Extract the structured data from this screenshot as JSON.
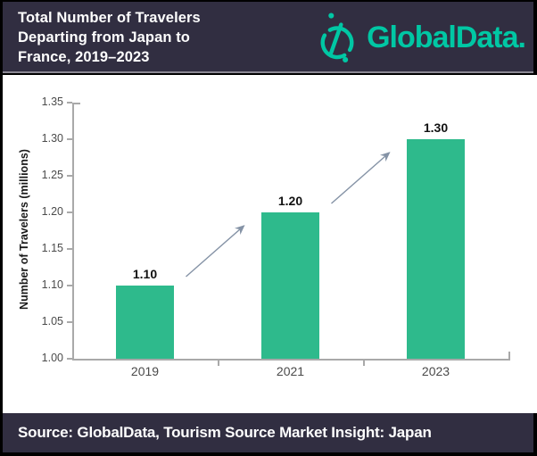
{
  "header": {
    "title_lines": [
      "Total Number of Travelers",
      "Departing from Japan to",
      "France, 2019–2023"
    ],
    "brand": "GlobalData.",
    "colors": {
      "background": "#312E41",
      "accent": "#00C7A4"
    }
  },
  "footer": {
    "source_text": "Source: GlobalData, Tourism Source Market Insight: Japan"
  },
  "chart_data": {
    "type": "bar",
    "title": "Total Number of Travelers Departing from Japan to France, 2019–2023",
    "categories": [
      "2019",
      "2021",
      "2023"
    ],
    "values": [
      1.1,
      1.2,
      1.3
    ],
    "value_labels": [
      "1.10",
      "1.20",
      "1.30"
    ],
    "xlabel": "",
    "ylabel": "Number of Travelers (millions)",
    "ylim": [
      1.0,
      1.35
    ],
    "ytick_step": 0.05,
    "ytick_labels": [
      "1.00",
      "1.05",
      "1.10",
      "1.15",
      "1.20",
      "1.25",
      "1.30",
      "1.35"
    ],
    "grid": false,
    "legend": false,
    "bar_color": "#2EBA8C",
    "arrow_color": "#8593A6",
    "axis_color": "#A9A9A9",
    "annotations": "upward arrows between consecutive bars indicating growth"
  }
}
